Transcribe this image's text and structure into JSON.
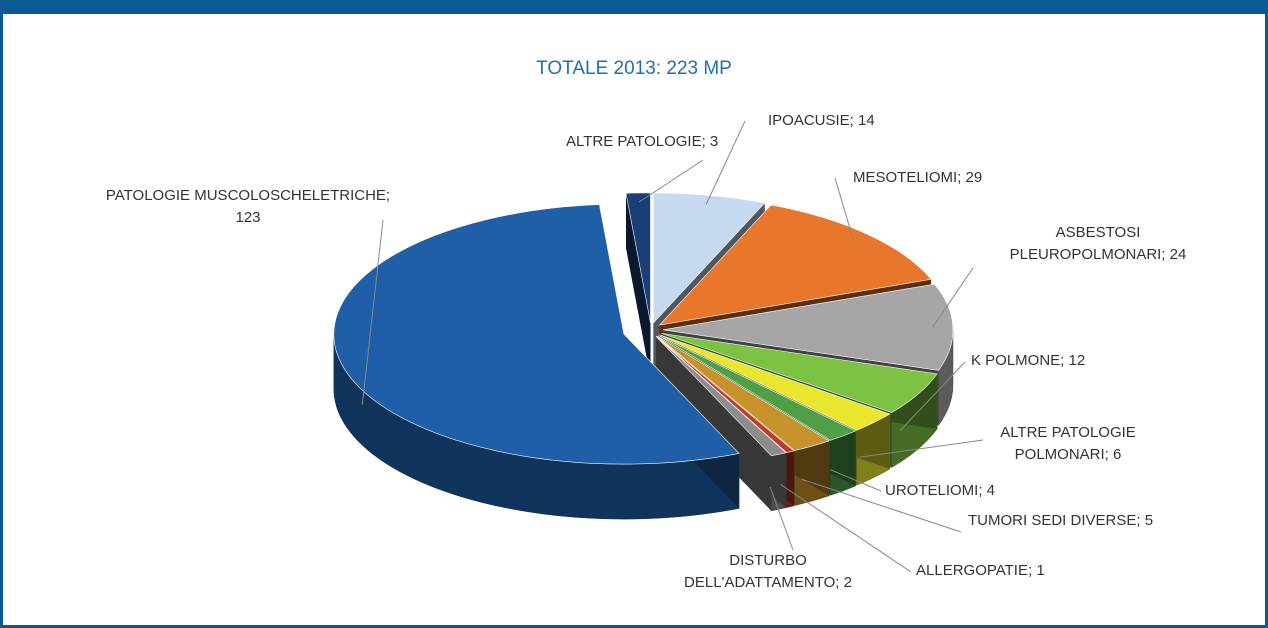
{
  "chart_data": {
    "type": "pie3d",
    "title": "TOTALE 2013: 223 MP",
    "values": [
      14,
      29,
      24,
      12,
      6,
      4,
      5,
      1,
      2,
      123,
      3
    ],
    "value_labels": [
      "IPOACUSIE; 14",
      "MESOTELIOMI; 29",
      "ASBESTOSI PLEUROPOLMONARI; 24",
      "K POLMONE; 12",
      "ALTRE PATOLOGIE POLMONARI; 6",
      "UROTELIOMI; 4",
      "TUMORI SEDI DIVERSE; 5",
      "ALLERGOPATIE; 1",
      "DISTURBO DELL'ADATTAMENTO; 2",
      "PATOLOGIE MUSCOLOSCHELETRICHE; 123",
      "ALTRE PATOLOGIE; 3"
    ],
    "colors": [
      "#c6d9f1",
      "#e8762b",
      "#a6a6a6",
      "#7dc242",
      "#e9e62e",
      "#4e9f45",
      "#c8922a",
      "#c0392b",
      "#8c8c8c",
      "#1f5fa8",
      "#1a3e78"
    ]
  }
}
